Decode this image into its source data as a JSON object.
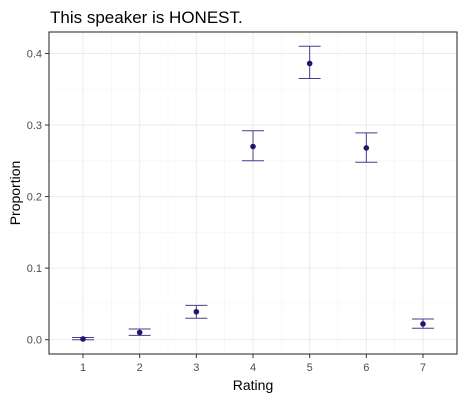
{
  "chart_data": {
    "type": "scatter",
    "title": "This speaker is HONEST.",
    "xlabel": "Rating",
    "ylabel": "Proportion",
    "x": [
      1,
      2,
      3,
      4,
      5,
      6,
      7
    ],
    "y": [
      0.001,
      0.01,
      0.039,
      0.27,
      0.386,
      0.268,
      0.022
    ],
    "error_low": [
      0.0,
      0.006,
      0.03,
      0.25,
      0.365,
      0.248,
      0.016
    ],
    "error_high": [
      0.003,
      0.015,
      0.048,
      0.292,
      0.41,
      0.289,
      0.029
    ],
    "xlim": [
      0.4,
      7.6
    ],
    "ylim": [
      -0.02,
      0.43
    ],
    "x_ticks": [
      "1",
      "2",
      "3",
      "4",
      "5",
      "6",
      "7"
    ],
    "y_ticks": [
      "0.0",
      "0.1",
      "0.2",
      "0.3",
      "0.4"
    ],
    "y_tick_values": [
      0.0,
      0.1,
      0.2,
      0.3,
      0.4
    ],
    "grid": true,
    "point_color": "#191970",
    "errorbar_color": "#483d8b"
  }
}
